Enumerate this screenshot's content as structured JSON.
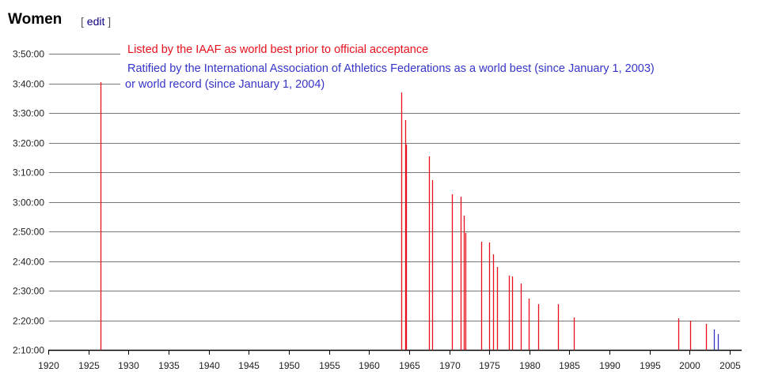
{
  "header": {
    "title": "Women",
    "edit_open": "[ ",
    "edit_label": "edit",
    "edit_close": " ]"
  },
  "chart_data": {
    "type": "bar",
    "title": "Women",
    "xlabel": "",
    "ylabel": "",
    "xlim": [
      1920,
      2006
    ],
    "ylim": [
      "2:10:00",
      "3:50:00"
    ],
    "x_ticks": [
      "1920",
      "1925",
      "1930",
      "1935",
      "1940",
      "1945",
      "1950",
      "1955",
      "1960",
      "1965",
      "1970",
      "1975",
      "1980",
      "1985",
      "1990",
      "1995",
      "2000",
      "2005"
    ],
    "y_ticks": [
      "3:50:00",
      "3:40:00",
      "3:30:00",
      "3:20:00",
      "3:10:00",
      "3:00:00",
      "2:50:00",
      "2:40:00",
      "2:30:00",
      "2:20:00",
      "2:10:00"
    ],
    "grid": true,
    "legend": [
      {
        "label": "Listed by the IAAF as world best prior to official acceptance",
        "color": "#e8101c"
      },
      {
        "label": "Ratified by the International Association of Athletics Federations as a world best (since January 1, 2003)",
        "label_line2": "or world record (since January 1, 2004)",
        "color": "#3535c8"
      }
    ],
    "series": [
      {
        "name": "IAAF listed",
        "color": "#e8101c",
        "points": [
          [
            1926.5,
            "3:40:24"
          ],
          [
            1964.0,
            "3:36:56"
          ],
          [
            1964.5,
            "3:27:36"
          ],
          [
            1964.6,
            "3:19:20"
          ],
          [
            1967.5,
            "3:15:20"
          ],
          [
            1967.9,
            "3:07:20"
          ],
          [
            1970.3,
            "3:02:32"
          ],
          [
            1971.4,
            "3:01:44"
          ],
          [
            1971.8,
            "2:55:20"
          ],
          [
            1972.0,
            "2:49:28"
          ],
          [
            1974.0,
            "2:46:32"
          ],
          [
            1975.0,
            "2:46:16"
          ],
          [
            1975.5,
            "2:42:16"
          ],
          [
            1976.0,
            "2:38:00"
          ],
          [
            1977.5,
            "2:35:04"
          ],
          [
            1977.8,
            "2:34:48"
          ],
          [
            1978.9,
            "2:32:24"
          ],
          [
            1979.9,
            "2:27:20"
          ],
          [
            1981.1,
            "2:25:28"
          ],
          [
            1983.6,
            "2:25:28"
          ],
          [
            1985.5,
            "2:20:56"
          ],
          [
            1998.6,
            "2:20:40"
          ],
          [
            2000.1,
            "2:19:52"
          ],
          [
            2002.0,
            "2:18:48"
          ]
        ]
      },
      {
        "name": "IAAF ratified",
        "color": "#3535c8",
        "points": [
          [
            2003.0,
            "2:16:56"
          ],
          [
            2003.5,
            "2:15:20"
          ]
        ]
      }
    ]
  }
}
